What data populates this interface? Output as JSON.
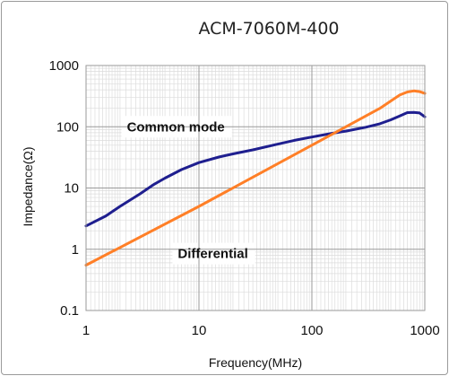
{
  "chart_data": {
    "type": "line",
    "title": "ACM-7060M-400",
    "xlabel": "Frequency(MHz)",
    "ylabel": "Impedance(Ω)",
    "x_scale": "log",
    "y_scale": "log",
    "xlim": [
      1,
      1000
    ],
    "ylim": [
      0.1,
      1000
    ],
    "x_ticks": [
      1,
      10,
      100,
      1000
    ],
    "x_tick_labels": [
      "1",
      "10",
      "100",
      "1000"
    ],
    "y_ticks": [
      0.1,
      1,
      10,
      100,
      1000
    ],
    "y_tick_labels": [
      "0.1",
      "1",
      "10",
      "100",
      "1000"
    ],
    "grid": true,
    "series": [
      {
        "name": "Common mode",
        "color": "#1f1f8f",
        "x": [
          1,
          1.5,
          2,
          3,
          4,
          5,
          7,
          10,
          15,
          20,
          30,
          50,
          70,
          100,
          150,
          200,
          300,
          400,
          500,
          600,
          700,
          800,
          900,
          1000
        ],
        "y": [
          2.4,
          3.5,
          5,
          8,
          11.5,
          14.5,
          20,
          26,
          32,
          36,
          42,
          52,
          60,
          68,
          78,
          85,
          98,
          112,
          130,
          150,
          170,
          172,
          168,
          145
        ]
      },
      {
        "name": "Differential",
        "color": "#ff7f27",
        "x": [
          1,
          10,
          100,
          200,
          400,
          600,
          700,
          800,
          900,
          1000
        ],
        "y": [
          0.55,
          5,
          50,
          100,
          200,
          330,
          370,
          385,
          375,
          350
        ]
      }
    ],
    "annotations": [
      {
        "text": "Common mode",
        "x": 2.3,
        "y": 100
      },
      {
        "text": "Differential",
        "x": 6.5,
        "y": 0.85
      }
    ]
  }
}
